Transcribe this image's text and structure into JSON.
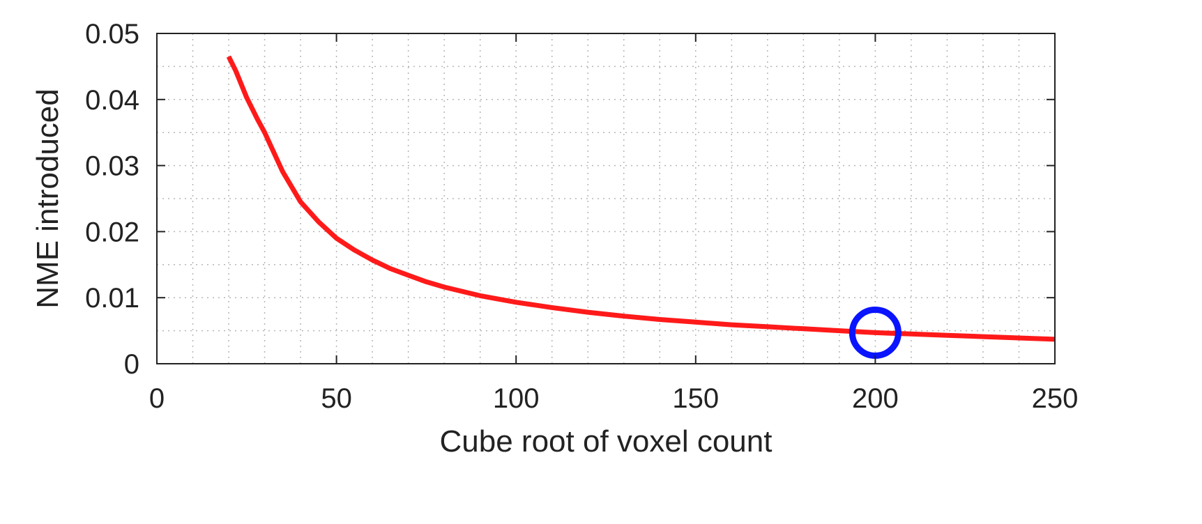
{
  "chart_data": {
    "type": "line",
    "xlabel": "Cube root of voxel count",
    "ylabel": "NME introduced",
    "xlim": [
      0,
      250
    ],
    "ylim": [
      0,
      0.05
    ],
    "x_ticks": [
      "0",
      "50",
      "100",
      "150",
      "200",
      "250"
    ],
    "y_ticks": [
      "0",
      "0.01",
      "0.02",
      "0.03",
      "0.04",
      "0.05"
    ],
    "grid": "dotted, minor every 10 on x and 0.005 on y",
    "series": [
      {
        "color": "#ff1a1a",
        "x": [
          20,
          22,
          25,
          28,
          30,
          35,
          40,
          45,
          50,
          55,
          60,
          65,
          70,
          75,
          80,
          90,
          100,
          110,
          120,
          130,
          140,
          150,
          160,
          170,
          180,
          190,
          200,
          210,
          220,
          230,
          240,
          250
        ],
        "y": [
          0.0465,
          0.0443,
          0.0403,
          0.037,
          0.035,
          0.0291,
          0.0245,
          0.0215,
          0.019,
          0.0172,
          0.0157,
          0.0144,
          0.0134,
          0.0124,
          0.0116,
          0.0103,
          0.0093,
          0.0085,
          0.0078,
          0.0072,
          0.0067,
          0.0063,
          0.0059,
          0.0056,
          0.0053,
          0.005,
          0.0047,
          0.0045,
          0.0043,
          0.0041,
          0.0039,
          0.0037
        ]
      }
    ],
    "highlight": {
      "x": 200,
      "y": 0.0047,
      "marker": "circle",
      "color": "#0a14ff"
    }
  }
}
